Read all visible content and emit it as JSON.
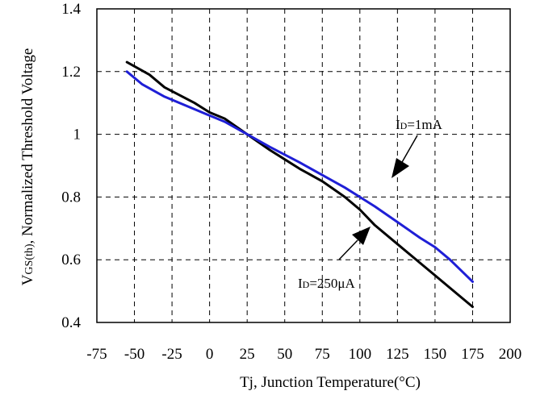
{
  "chart_data": {
    "type": "line",
    "title": "",
    "xlabel": "Tj, Junction Temperature(°C)",
    "ylabel_main": "V",
    "ylabel_sub": "GS(th)",
    "ylabel_rest": ", Normalized Threshold Voltage",
    "xlim": [
      -75,
      200
    ],
    "ylim": [
      0.4,
      1.4
    ],
    "xticks": [
      -75,
      -50,
      -25,
      0,
      25,
      50,
      75,
      100,
      125,
      150,
      175,
      200
    ],
    "yticks": [
      0.4,
      0.6,
      0.8,
      1,
      1.2,
      1.4
    ],
    "xtick_labels": [
      "-75",
      "-50",
      "-25",
      "0",
      "25",
      "50",
      "75",
      "100",
      "125",
      "150",
      "175",
      "200"
    ],
    "ytick_labels": [
      "0.4",
      "0.6",
      "0.8",
      "1",
      "1.2",
      "1.4"
    ],
    "grid": true,
    "series": [
      {
        "name": "ID=1mA",
        "color": "#1f1fd6",
        "x": [
          -55,
          -45,
          -30,
          -10,
          0,
          10,
          25,
          40,
          60,
          75,
          90,
          100,
          110,
          125,
          140,
          150,
          160,
          175
        ],
        "y": [
          1.2,
          1.16,
          1.12,
          1.08,
          1.06,
          1.04,
          1.0,
          0.96,
          0.91,
          0.87,
          0.83,
          0.8,
          0.77,
          0.72,
          0.67,
          0.64,
          0.6,
          0.53
        ]
      },
      {
        "name": "ID=250μA",
        "color": "#000000",
        "x": [
          -55,
          -40,
          -30,
          -10,
          0,
          10,
          25,
          40,
          50,
          60,
          75,
          90,
          100,
          110,
          125,
          140,
          150,
          165,
          175
        ],
        "y": [
          1.23,
          1.19,
          1.15,
          1.1,
          1.07,
          1.05,
          1.0,
          0.95,
          0.92,
          0.89,
          0.85,
          0.8,
          0.76,
          0.71,
          0.65,
          0.59,
          0.55,
          0.49,
          0.45
        ]
      }
    ],
    "annotations": [
      {
        "main": "I",
        "sub": "D",
        "rest": "=1mA"
      },
      {
        "main": "I",
        "sub": "D",
        "rest": "=250μA"
      }
    ]
  }
}
